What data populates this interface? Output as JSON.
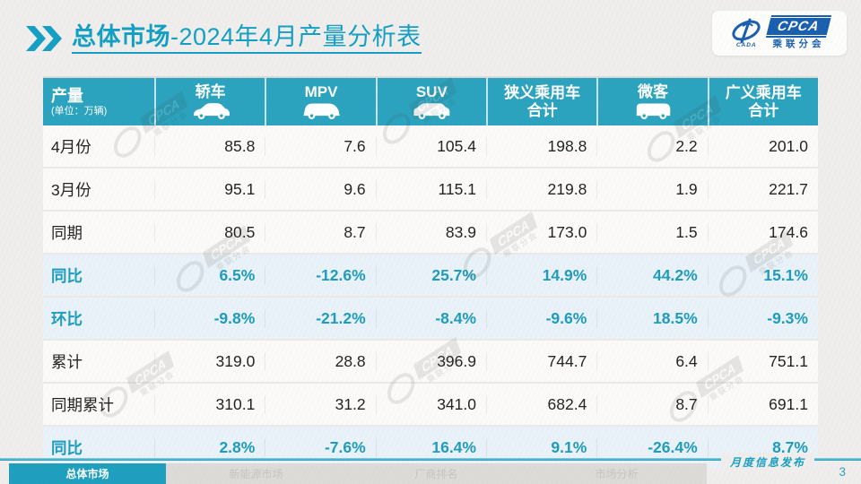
{
  "header": {
    "title_main": "总体市场",
    "title_rest": "-2024年4月产量分析表",
    "logo": {
      "swoosh_label": "CADA",
      "brand": "CPCA",
      "brand_sub": "乘联分会"
    }
  },
  "table": {
    "corner": {
      "title": "产量",
      "unit": "(单位：万辆)"
    },
    "columns": [
      {
        "label": "轿车",
        "icon": "sedan-icon"
      },
      {
        "label": "MPV",
        "icon": "mpv-icon"
      },
      {
        "label": "SUV",
        "icon": "suv-icon"
      },
      {
        "label": "狭义乘用车",
        "label2": "合计"
      },
      {
        "label": "微客",
        "icon": "microvan-icon"
      },
      {
        "label": "广义乘用车",
        "label2": "合计"
      }
    ]
  },
  "chart_data": {
    "type": "table",
    "title": "总体市场-2024年4月产量分析表",
    "unit": "万辆",
    "columns": [
      "轿车",
      "MPV",
      "SUV",
      "狭义乘用车合计",
      "微客",
      "广义乘用车合计"
    ],
    "rows": [
      {
        "label": "4月份",
        "kind": "value",
        "values": [
          "85.8",
          "7.6",
          "105.4",
          "198.8",
          "2.2",
          "201.0"
        ]
      },
      {
        "label": "3月份",
        "kind": "value",
        "values": [
          "95.1",
          "9.6",
          "115.1",
          "219.8",
          "1.9",
          "221.7"
        ]
      },
      {
        "label": "同期",
        "kind": "value",
        "values": [
          "80.5",
          "8.7",
          "83.9",
          "173.0",
          "1.5",
          "174.6"
        ]
      },
      {
        "label": "同比",
        "kind": "percent",
        "values": [
          "6.5%",
          "-12.6%",
          "25.7%",
          "14.9%",
          "44.2%",
          "15.1%"
        ]
      },
      {
        "label": "环比",
        "kind": "percent",
        "values": [
          "-9.8%",
          "-21.2%",
          "-8.4%",
          "-9.6%",
          "18.5%",
          "-9.3%"
        ]
      },
      {
        "label": "累计",
        "kind": "value",
        "values": [
          "319.0",
          "28.8",
          "396.9",
          "744.7",
          "6.4",
          "751.1"
        ]
      },
      {
        "label": "同期累计",
        "kind": "value",
        "values": [
          "310.1",
          "31.2",
          "341.0",
          "682.4",
          "8.7",
          "691.1"
        ]
      },
      {
        "label": "同比",
        "kind": "percent",
        "values": [
          "2.8%",
          "-7.6%",
          "16.4%",
          "9.1%",
          "-26.4%",
          "8.7%"
        ]
      }
    ]
  },
  "watermark": {
    "brand": "CPCA",
    "sub": "乘联分会"
  },
  "footer": {
    "tabs": [
      {
        "label": "总体市场",
        "active": true
      },
      {
        "label": "新能源市场",
        "active": false
      },
      {
        "label": "厂商排名",
        "active": false
      },
      {
        "label": "市场分析",
        "active": false
      }
    ],
    "publication": "月度信息发布",
    "page_number": "3"
  },
  "colors": {
    "accent_teal": "#2AA3BE",
    "percent_text": "#1E9CBB",
    "highlight_row_bg": "#E9F2F9",
    "logo_blue": "#1A5FAE"
  }
}
